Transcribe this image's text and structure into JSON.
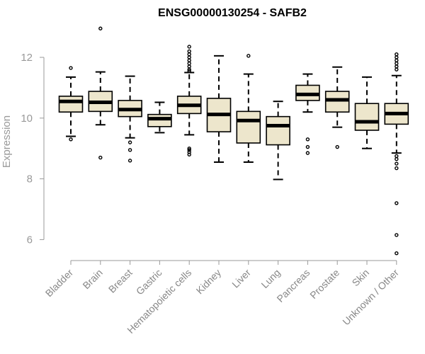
{
  "chart_data": {
    "type": "boxplot",
    "title": "ENSG00000130254 - SAFB2",
    "xlabel": "",
    "ylabel": "Expression",
    "ylim": [
      5.5,
      13.1
    ],
    "yticks": [
      6,
      8,
      10,
      12
    ],
    "box_fill": "#ede6cc",
    "categories": [
      {
        "label": "Bladder",
        "whisker_low": 9.4,
        "q1": 10.2,
        "median": 10.55,
        "q3": 10.72,
        "whisker_high": 11.35,
        "outliers": [
          9.3,
          11.65
        ]
      },
      {
        "label": "Brain",
        "whisker_low": 9.78,
        "q1": 10.22,
        "median": 10.52,
        "q3": 10.88,
        "whisker_high": 11.52,
        "outliers": [
          8.7,
          12.95
        ]
      },
      {
        "label": "Breast",
        "whisker_low": 9.35,
        "q1": 10.05,
        "median": 10.28,
        "q3": 10.58,
        "whisker_high": 11.38,
        "outliers": [
          9.2,
          8.95,
          8.6
        ]
      },
      {
        "label": "Gastric",
        "whisker_low": 9.52,
        "q1": 9.72,
        "median": 9.98,
        "q3": 10.12,
        "whisker_high": 10.52,
        "outliers": []
      },
      {
        "label": "Hematopoietic cells",
        "whisker_low": 9.45,
        "q1": 10.15,
        "median": 10.42,
        "q3": 10.72,
        "whisker_high": 11.5,
        "outliers": [
          8.8,
          8.88,
          8.95,
          9.0,
          11.55,
          11.6,
          11.7,
          11.8,
          11.9,
          12.0,
          12.1,
          12.2,
          12.35
        ]
      },
      {
        "label": "Kidney",
        "whisker_low": 8.55,
        "q1": 9.55,
        "median": 10.12,
        "q3": 10.65,
        "whisker_high": 12.05,
        "outliers": []
      },
      {
        "label": "Liver",
        "whisker_low": 8.55,
        "q1": 9.18,
        "median": 9.92,
        "q3": 10.22,
        "whisker_high": 11.45,
        "outliers": [
          12.05
        ]
      },
      {
        "label": "Lung",
        "whisker_low": 7.98,
        "q1": 9.12,
        "median": 9.75,
        "q3": 10.05,
        "whisker_high": 10.55,
        "outliers": []
      },
      {
        "label": "Pancreas",
        "whisker_low": 10.2,
        "q1": 10.58,
        "median": 10.78,
        "q3": 11.08,
        "whisker_high": 11.45,
        "outliers": [
          9.3,
          9.05,
          8.85
        ]
      },
      {
        "label": "Prostate",
        "whisker_low": 9.7,
        "q1": 10.2,
        "median": 10.6,
        "q3": 10.88,
        "whisker_high": 11.68,
        "outliers": [
          9.05
        ]
      },
      {
        "label": "Skin",
        "whisker_low": 9.0,
        "q1": 9.6,
        "median": 9.88,
        "q3": 10.48,
        "whisker_high": 11.35,
        "outliers": []
      },
      {
        "label": "Unknown / Other",
        "whisker_low": 8.85,
        "q1": 9.8,
        "median": 10.15,
        "q3": 10.48,
        "whisker_high": 11.4,
        "outliers": [
          5.55,
          6.15,
          7.2,
          8.35,
          8.5,
          8.65,
          8.75,
          11.6,
          11.7,
          11.8,
          11.9,
          12.0,
          12.1
        ]
      }
    ]
  }
}
